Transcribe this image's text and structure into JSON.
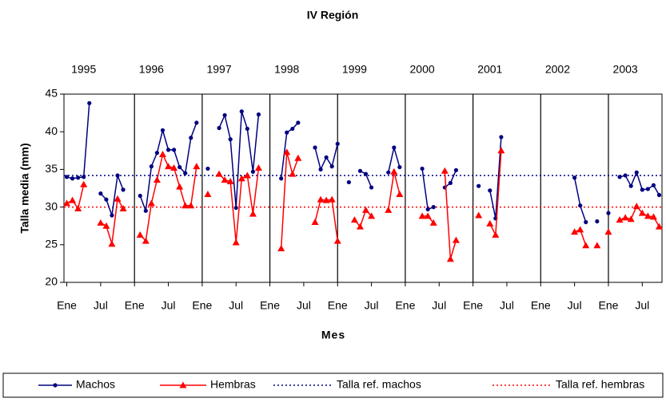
{
  "chart_data": {
    "type": "line",
    "title": "IV Región",
    "x_label": "Mes",
    "y_label": "Talla media (mm)",
    "categories": [
      "Ene",
      null,
      null,
      null,
      null,
      null,
      "Jul",
      null,
      null,
      null,
      null,
      null,
      "Ene",
      null,
      null,
      null,
      null,
      null,
      "Jul",
      null,
      null,
      null,
      null,
      null,
      "Ene",
      null,
      null,
      null,
      null,
      null,
      "Jul",
      null,
      null,
      null,
      null,
      null,
      "Ene",
      null,
      null,
      null,
      null,
      null,
      "Jul",
      null,
      null,
      null,
      null,
      null,
      "Ene",
      null,
      null,
      null,
      null,
      null,
      "Jul",
      null,
      null,
      null,
      null,
      null,
      "Ene",
      null,
      null,
      null,
      null,
      null,
      "Jul",
      null,
      null,
      null,
      null,
      null,
      "Ene",
      null,
      null,
      null,
      null,
      null,
      "Jul",
      null,
      null,
      null,
      null,
      null,
      "Ene",
      null,
      null,
      null,
      null,
      null,
      "Jul",
      null,
      null,
      null,
      null,
      null,
      "Ene",
      null,
      null,
      null,
      null,
      null,
      "Jul",
      null,
      null,
      null
    ],
    "x2_categories": [
      "1995",
      "1996",
      "1997",
      "1998",
      "1999",
      "2000",
      "2001",
      "2002",
      "2003"
    ],
    "series": [
      {
        "name": "Machos",
        "color": "#000080",
        "marker": "circle",
        "values": [
          34.0,
          33.8,
          33.9,
          34.0,
          43.8,
          null,
          31.8,
          31.0,
          28.9,
          34.2,
          32.3,
          null,
          null,
          31.5,
          29.5,
          35.4,
          37.2,
          40.2,
          37.6,
          37.6,
          35.3,
          34.5,
          39.2,
          41.2,
          null,
          35.1,
          null,
          40.5,
          42.2,
          39.0,
          29.9,
          42.7,
          40.4,
          34.7,
          42.3,
          null,
          null,
          null,
          33.8,
          39.9,
          40.4,
          41.2,
          null,
          null,
          37.9,
          35.0,
          36.6,
          35.4,
          38.4,
          null,
          33.3,
          null,
          34.8,
          34.4,
          32.6,
          null,
          null,
          34.6,
          37.9,
          35.3,
          null,
          null,
          null,
          35.1,
          29.7,
          30.0,
          null,
          32.6,
          33.2,
          34.9,
          null,
          null,
          null,
          32.8,
          null,
          32.2,
          28.5,
          39.3,
          null,
          null,
          null,
          null,
          null,
          null,
          null,
          null,
          null,
          null,
          null,
          null,
          33.9,
          30.2,
          28.0,
          null,
          28.1,
          null,
          29.2,
          null,
          34.0,
          34.2,
          32.8,
          34.6,
          32.3,
          32.4,
          32.9,
          31.6
        ]
      },
      {
        "name": "Hembras",
        "color": "#ff0000",
        "marker": "triangle",
        "values": [
          30.5,
          30.9,
          29.8,
          33.0,
          null,
          null,
          27.9,
          27.5,
          25.1,
          31.1,
          29.8,
          null,
          null,
          26.3,
          25.5,
          30.5,
          33.6,
          37.0,
          35.4,
          35.2,
          32.7,
          30.2,
          30.2,
          35.4,
          null,
          31.7,
          null,
          34.4,
          33.6,
          33.4,
          25.3,
          33.8,
          34.2,
          29.1,
          35.2,
          null,
          null,
          null,
          24.5,
          37.3,
          34.4,
          36.5,
          null,
          null,
          28.0,
          31.0,
          30.9,
          31.0,
          25.5,
          null,
          null,
          28.3,
          27.4,
          29.6,
          28.8,
          null,
          null,
          29.6,
          34.7,
          31.7,
          null,
          null,
          null,
          28.8,
          28.8,
          27.9,
          null,
          34.8,
          23.1,
          25.6,
          null,
          null,
          null,
          28.9,
          null,
          27.8,
          26.3,
          37.5,
          null,
          null,
          null,
          null,
          null,
          null,
          null,
          null,
          null,
          null,
          null,
          null,
          26.7,
          27.0,
          24.9,
          null,
          24.9,
          null,
          26.7,
          null,
          28.3,
          28.6,
          28.4,
          30.1,
          29.2,
          28.8,
          28.7,
          27.4
        ]
      }
    ],
    "reference_lines": [
      {
        "name": "Talla ref. machos",
        "color": "#000080",
        "value": 34.2
      },
      {
        "name": "Talla ref. hembras",
        "color": "#ff0000",
        "value": 30.0
      }
    ],
    "ylim": [
      20,
      45
    ],
    "yticks": [
      20,
      25,
      30,
      35,
      40,
      45
    ],
    "grid": false
  }
}
